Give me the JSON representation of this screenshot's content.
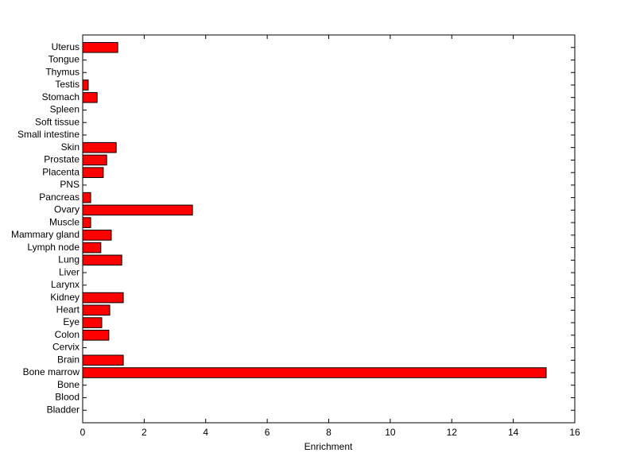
{
  "chart_data": {
    "type": "barh",
    "xlabel": "Enrichment",
    "categories": [
      "Bladder",
      "Blood",
      "Bone",
      "Bone marrow",
      "Brain",
      "Cervix",
      "Colon",
      "Eye",
      "Heart",
      "Kidney",
      "Larynx",
      "Liver",
      "Lung",
      "Lymph node",
      "Mammary gland",
      "Muscle",
      "Ovary",
      "Pancreas",
      "PNS",
      "Placenta",
      "Prostate",
      "Skin",
      "Small intestine",
      "Soft tissue",
      "Spleen",
      "Stomach",
      "Testis",
      "Thymus",
      "Tongue",
      "Uterus"
    ],
    "values": [
      0,
      0,
      0,
      15.07,
      1.32,
      0,
      0.85,
      0.62,
      0.88,
      1.32,
      0,
      0,
      1.27,
      0.59,
      0.93,
      0.26,
      3.57,
      0.26,
      0,
      0.67,
      0.78,
      1.09,
      0,
      0,
      0,
      0.47,
      0.18,
      0,
      0,
      1.14
    ],
    "color": "#ff0000",
    "xlim": [
      0,
      16
    ],
    "xticks": [
      0,
      2,
      4,
      6,
      8,
      10,
      12,
      14,
      16
    ]
  }
}
